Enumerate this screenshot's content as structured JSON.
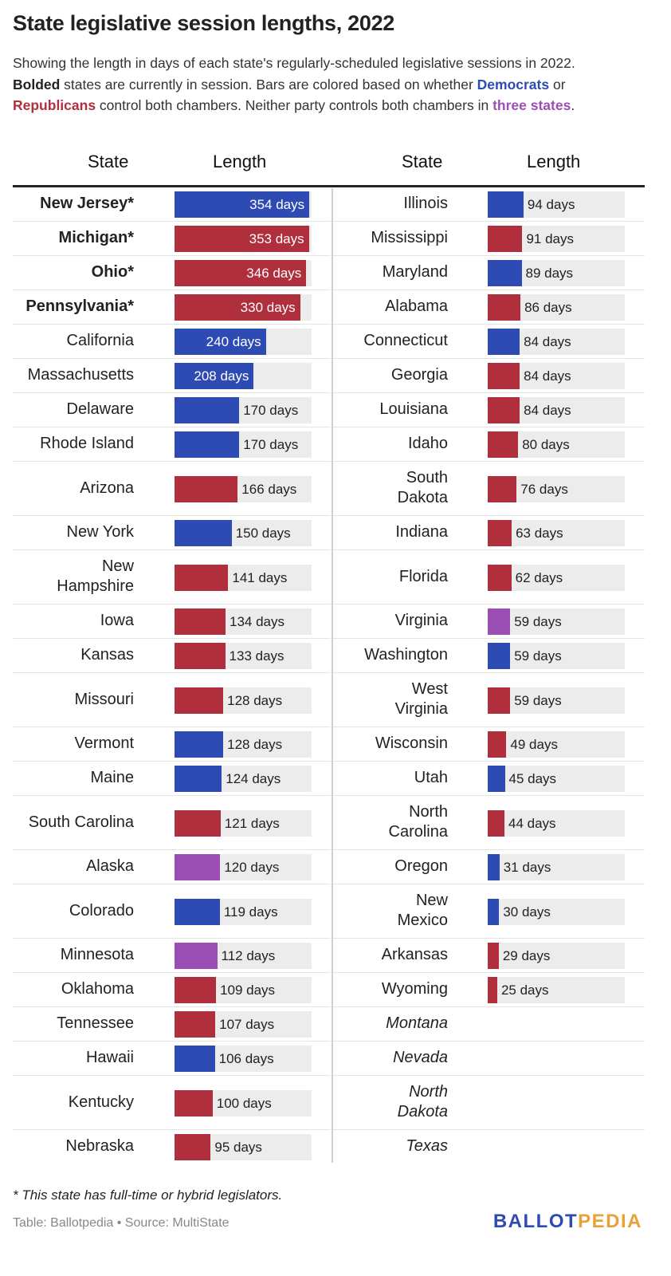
{
  "title": "State legislative session lengths, 2022",
  "subtitle": {
    "p1": "Showing the length in days of each state's regularly-scheduled legislative sessions in 2022.",
    "bolded": "Bolded",
    "p2": " states are currently in session. Bars are colored based on whether ",
    "democrats": "Democrats",
    "p3": " or ",
    "republicans": "Republicans",
    "p4": " control both chambers. Neither party controls both chambers in ",
    "three_states": "three states",
    "p5": "."
  },
  "columns": {
    "state": "State",
    "length": "Length"
  },
  "colors": {
    "D": "#2e4bb3",
    "R": "#b02f3c",
    "S": "#9b4fb5",
    "track": "#ececec"
  },
  "footnote": "* This state has full-time or hybrid legislators.",
  "credit": "Table: Ballotpedia • Source: MultiState",
  "logo": {
    "part1": "BALLOT",
    "part2": "PEDIA"
  },
  "chart_data": {
    "type": "bar",
    "title": "State legislative session lengths, 2022",
    "xlabel": "Length",
    "ylabel": "State",
    "xlim": [
      0,
      360
    ],
    "unit": "days",
    "left": [
      {
        "state": [
          "New Jersey*"
        ],
        "days": 354,
        "party": "D",
        "bold": true
      },
      {
        "state": [
          "Michigan*"
        ],
        "days": 353,
        "party": "R",
        "bold": true
      },
      {
        "state": [
          "Ohio*"
        ],
        "days": 346,
        "party": "R",
        "bold": true
      },
      {
        "state": [
          "Pennsylvania*"
        ],
        "days": 330,
        "party": "R",
        "bold": true
      },
      {
        "state": [
          "California"
        ],
        "days": 240,
        "party": "D"
      },
      {
        "state": [
          "Massachusetts"
        ],
        "days": 208,
        "party": "D"
      },
      {
        "state": [
          "Delaware"
        ],
        "days": 170,
        "party": "D"
      },
      {
        "state": [
          "Rhode Island"
        ],
        "days": 170,
        "party": "D"
      },
      {
        "state": [
          "Arizona"
        ],
        "days": 166,
        "party": "R"
      },
      {
        "state": [
          "New York"
        ],
        "days": 150,
        "party": "D"
      },
      {
        "state": [
          "New",
          "Hampshire"
        ],
        "days": 141,
        "party": "R"
      },
      {
        "state": [
          "Iowa"
        ],
        "days": 134,
        "party": "R"
      },
      {
        "state": [
          "Kansas"
        ],
        "days": 133,
        "party": "R"
      },
      {
        "state": [
          "Missouri"
        ],
        "days": 128,
        "party": "R"
      },
      {
        "state": [
          "Vermont"
        ],
        "days": 128,
        "party": "D"
      },
      {
        "state": [
          "Maine"
        ],
        "days": 124,
        "party": "D"
      },
      {
        "state": [
          "South Carolina"
        ],
        "days": 121,
        "party": "R"
      },
      {
        "state": [
          "Alaska"
        ],
        "days": 120,
        "party": "S"
      },
      {
        "state": [
          "Colorado"
        ],
        "days": 119,
        "party": "D"
      },
      {
        "state": [
          "Minnesota"
        ],
        "days": 112,
        "party": "S"
      },
      {
        "state": [
          "Oklahoma"
        ],
        "days": 109,
        "party": "R"
      },
      {
        "state": [
          "Tennessee"
        ],
        "days": 107,
        "party": "R"
      },
      {
        "state": [
          "Hawaii"
        ],
        "days": 106,
        "party": "D"
      },
      {
        "state": [
          "Kentucky"
        ],
        "days": 100,
        "party": "R"
      },
      {
        "state": [
          "Nebraska"
        ],
        "days": 95,
        "party": "R"
      }
    ],
    "right": [
      {
        "state": [
          "Illinois"
        ],
        "days": 94,
        "party": "D"
      },
      {
        "state": [
          "Mississippi"
        ],
        "days": 91,
        "party": "R"
      },
      {
        "state": [
          "Maryland"
        ],
        "days": 89,
        "party": "D"
      },
      {
        "state": [
          "Alabama"
        ],
        "days": 86,
        "party": "R"
      },
      {
        "state": [
          "Connecticut"
        ],
        "days": 84,
        "party": "D"
      },
      {
        "state": [
          "Georgia"
        ],
        "days": 84,
        "party": "R"
      },
      {
        "state": [
          "Louisiana"
        ],
        "days": 84,
        "party": "R"
      },
      {
        "state": [
          "Idaho"
        ],
        "days": 80,
        "party": "R"
      },
      {
        "state": [
          "South",
          "Dakota"
        ],
        "days": 76,
        "party": "R"
      },
      {
        "state": [
          "Indiana"
        ],
        "days": 63,
        "party": "R"
      },
      {
        "state": [
          "Florida"
        ],
        "days": 62,
        "party": "R"
      },
      {
        "state": [
          "Virginia"
        ],
        "days": 59,
        "party": "S"
      },
      {
        "state": [
          "Washington"
        ],
        "days": 59,
        "party": "D"
      },
      {
        "state": [
          "West",
          "Virginia"
        ],
        "days": 59,
        "party": "R"
      },
      {
        "state": [
          "Wisconsin"
        ],
        "days": 49,
        "party": "R"
      },
      {
        "state": [
          "Utah"
        ],
        "days": 45,
        "party": "D"
      },
      {
        "state": [
          "North",
          "Carolina"
        ],
        "days": 44,
        "party": "R"
      },
      {
        "state": [
          "Oregon"
        ],
        "days": 31,
        "party": "D"
      },
      {
        "state": [
          "New",
          "Mexico"
        ],
        "days": 30,
        "party": "D"
      },
      {
        "state": [
          "Arkansas"
        ],
        "days": 29,
        "party": "R"
      },
      {
        "state": [
          "Wyoming"
        ],
        "days": 25,
        "party": "R"
      },
      {
        "state": [
          "Montana"
        ],
        "italic": true
      },
      {
        "state": [
          "Nevada"
        ],
        "italic": true
      },
      {
        "state": [
          "North",
          "Dakota"
        ],
        "italic": true
      },
      {
        "state": [
          "Texas"
        ],
        "italic": true
      }
    ]
  }
}
